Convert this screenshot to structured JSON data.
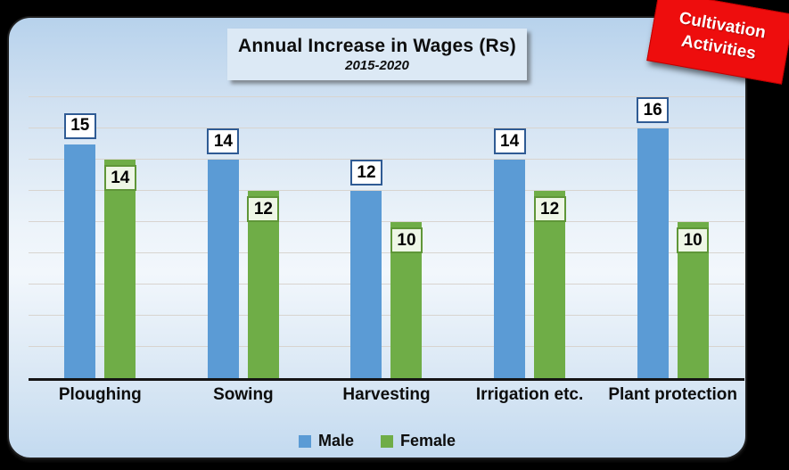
{
  "page": {
    "background": "#000000"
  },
  "title_box": {
    "title": "Annual Increase in Wages (Rs)",
    "subtitle": "2015-2020"
  },
  "badge": {
    "line1": "Cultivation",
    "line2": "Activities",
    "color": "#ee0d0d",
    "text_color": "#ffffff"
  },
  "legend": {
    "items": [
      {
        "label": "Male",
        "color": "#5b9bd5"
      },
      {
        "label": "Female",
        "color": "#6fad47"
      }
    ]
  },
  "chart_data": {
    "type": "bar",
    "title": "Annual Increase in Wages (Rs)",
    "subtitle": "2015-2020",
    "categories": [
      "Ploughing",
      "Sowing",
      "Harvesting",
      "Irrigation etc.",
      "Plant protection"
    ],
    "series": [
      {
        "name": "Male",
        "color": "#5b9bd5",
        "values": [
          15,
          14,
          12,
          14,
          16
        ],
        "label_box": {
          "fill": "#ffffff",
          "border": "#2f5b94"
        }
      },
      {
        "name": "Female",
        "color": "#6fad47",
        "values": [
          14,
          12,
          10,
          12,
          10
        ],
        "label_box": {
          "fill": "#eef6e6",
          "border": "#5f9638"
        }
      }
    ],
    "xlabel": "",
    "ylabel": "",
    "ylim": [
      0,
      19
    ],
    "gridlines": {
      "interval": 2,
      "color": "#d8d4cf",
      "visible": true
    },
    "axis_line_color": "#151515",
    "legend_position": "bottom",
    "data_labels": true,
    "data_label_position": {
      "Male": "outside-end",
      "Female": "inside-end"
    }
  }
}
